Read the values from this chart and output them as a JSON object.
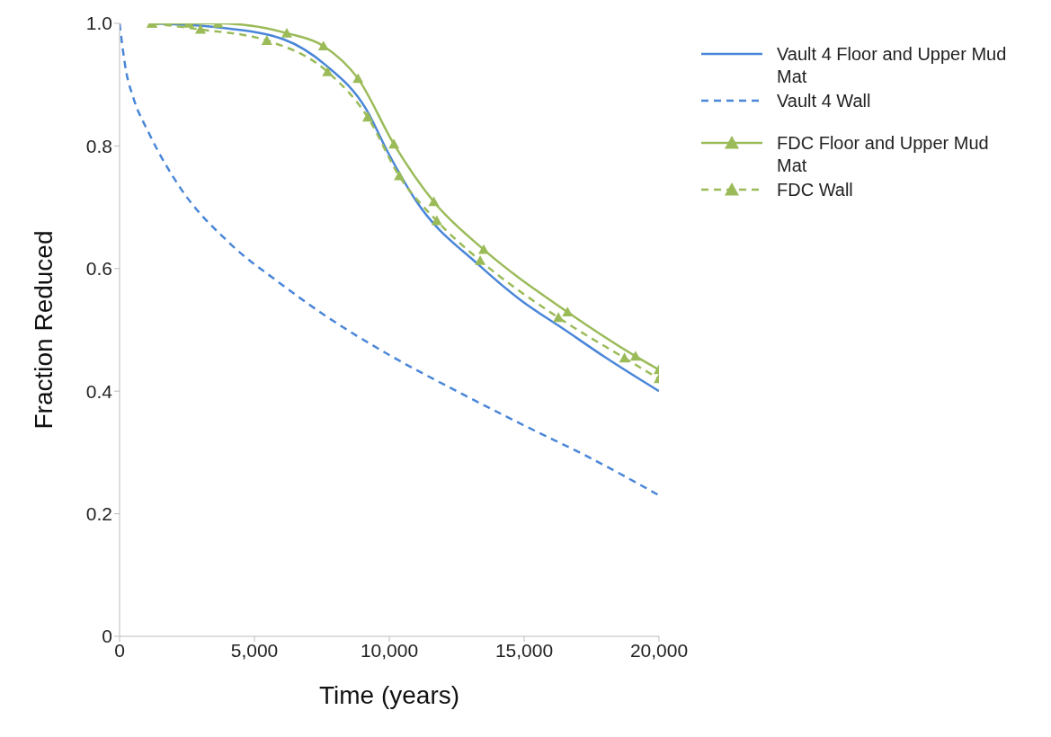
{
  "chart_data": {
    "type": "line",
    "xlabel": "Time (years)",
    "ylabel": "Fraction Reduced",
    "xlim": [
      0,
      20000
    ],
    "ylim": [
      0,
      1
    ],
    "xticks": [
      0,
      {
        "value": 5000,
        "label": "5,000"
      },
      {
        "value": 10000,
        "label": "10,000"
      },
      {
        "value": 15000,
        "label": "15,000"
      },
      {
        "value": 20000,
        "label": "20,000"
      }
    ],
    "yticks": [
      0,
      0.2,
      0.4,
      0.6,
      0.8,
      {
        "value": 1,
        "label": "1.0"
      }
    ],
    "grid": false,
    "legend": "top right",
    "series": [
      {
        "name": "Vault 4 Floor and Upper Mud Mat",
        "color": "#4a86d8",
        "line_style": "solid",
        "marker": "none",
        "x": [
          1200,
          3730,
          6080,
          7640,
          9130,
          9980,
          11000,
          13370,
          14830,
          16510,
          17980,
          20000
        ],
        "values": [
          1.0,
          0.993,
          0.974,
          0.932,
          0.861,
          0.787,
          0.71,
          0.604,
          0.55,
          0.5,
          0.456,
          0.4
        ]
      },
      {
        "name": "Vault 4 Wall",
        "color": "#4a86d8",
        "line_style": "dashed",
        "marker": "none",
        "x": [
          0,
          250,
          500,
          1110,
          2230,
          4090,
          5950,
          7530,
          10000,
          12500,
          15000,
          17500,
          20000
        ],
        "values": [
          1.0,
          0.92,
          0.88,
          0.819,
          0.733,
          0.641,
          0.576,
          0.526,
          0.459,
          0.4,
          0.344,
          0.29,
          0.23
        ]
      },
      {
        "name": "FDC Floor and Upper Mud Mat",
        "color": "#9bbb59",
        "line_style": "solid",
        "marker": "triangle",
        "x": [
          1200,
          2570,
          3650,
          6200,
          7560,
          8840,
          10170,
          11650,
          13500,
          16610,
          19130,
          20000
        ],
        "values": [
          1.0,
          1.0,
          1.0,
          0.984,
          0.963,
          0.91,
          0.803,
          0.709,
          0.631,
          0.529,
          0.457,
          0.435
        ]
      },
      {
        "name": "FDC Wall",
        "color": "#9bbb59",
        "line_style": "dashed",
        "marker": "triangle",
        "x": [
          1200,
          3000,
          5460,
          7710,
          9200,
          10370,
          11760,
          13370,
          16270,
          18720,
          20000
        ],
        "values": [
          1.0,
          0.99,
          0.972,
          0.921,
          0.847,
          0.751,
          0.678,
          0.613,
          0.52,
          0.454,
          0.42
        ]
      }
    ]
  }
}
